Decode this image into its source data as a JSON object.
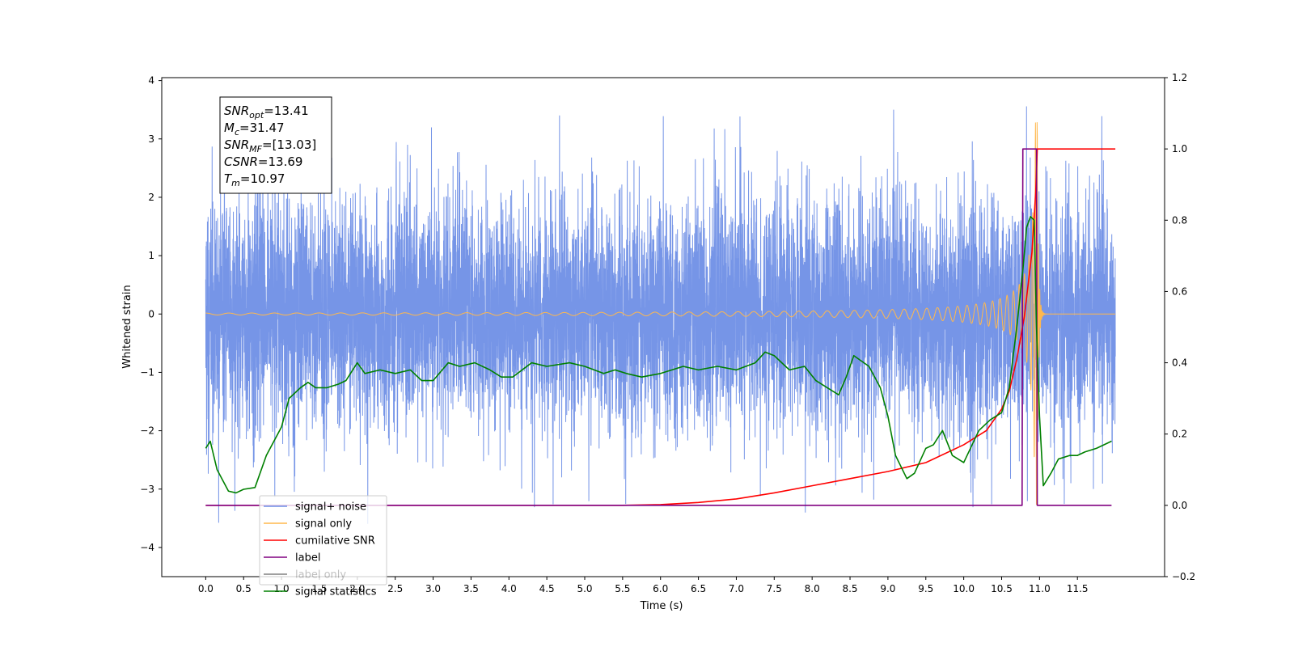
{
  "chart_data": {
    "type": "line",
    "xlabel": "Time (s)",
    "ylabel": "Whitened strain",
    "xlim": [
      -0.58,
      12.65
    ],
    "ylim": [
      -4.5,
      4.05
    ],
    "y2lim": [
      -0.2,
      1.2
    ],
    "x_ticks": [
      "0.0",
      "0.5",
      "1.0",
      "1.5",
      "2.0",
      "2.5",
      "3.0",
      "3.5",
      "4.0",
      "4.5",
      "5.0",
      "5.5",
      "6.0",
      "6.5",
      "7.0",
      "7.5",
      "8.0",
      "8.5",
      "9.0",
      "9.5",
      "10.0",
      "10.5",
      "11.0",
      "11.5"
    ],
    "y_ticks": [
      "4",
      "3",
      "2",
      "1",
      "0",
      "−1",
      "−2",
      "−3",
      "−4"
    ],
    "y2_ticks": [
      "1.2",
      "1.0",
      "0.8",
      "0.6",
      "0.4",
      "0.2",
      "0.0",
      "−0.2"
    ],
    "grid": false,
    "legend_position": "lower-left",
    "annotation": {
      "lines": [
        {
          "sym": "SNR",
          "sub": "opt",
          "value": "=13.41"
        },
        {
          "sym": "M",
          "sub": "c",
          "value": "=31.47"
        },
        {
          "sym": "SNR",
          "sub": "MF",
          "value": "=[13.03]"
        },
        {
          "sym": "CSNR",
          "sub": "",
          "value": "=13.69"
        },
        {
          "sym": "T",
          "sub": "m",
          "value": "=10.97"
        }
      ]
    },
    "series": [
      {
        "name": "signal+ noise",
        "color": "#6f8fe6",
        "axis": "left",
        "noise_amplitude": 1.9,
        "x_range": [
          0.0,
          12.0
        ]
      },
      {
        "name": "signal only",
        "color": "#ffb84d",
        "axis": "left",
        "merger_time": 10.97,
        "peak": 3.3,
        "x_range": [
          0.0,
          12.0
        ]
      },
      {
        "name": "cumilative SNR",
        "color": "#ff0000",
        "axis": "right",
        "x": [
          0.0,
          5.5,
          6.0,
          6.5,
          7.0,
          7.5,
          8.0,
          8.5,
          9.0,
          9.5,
          10.0,
          10.3,
          10.5,
          10.6,
          10.7,
          10.8,
          10.9,
          10.95,
          10.97,
          12.0
        ],
        "y": [
          0.0,
          0.0,
          0.002,
          0.008,
          0.018,
          0.035,
          0.055,
          0.075,
          0.095,
          0.12,
          0.17,
          0.21,
          0.27,
          0.32,
          0.41,
          0.53,
          0.71,
          0.88,
          1.0,
          1.0
        ]
      },
      {
        "name": "label",
        "color": "#800080",
        "axis": "right",
        "x": [
          0.0,
          10.77,
          10.78,
          10.96,
          10.97,
          11.95
        ],
        "y": [
          0.0,
          0.0,
          1.0,
          1.0,
          0.0,
          0.0
        ]
      },
      {
        "name": "label only",
        "color": "#808080",
        "axis": "right",
        "x": [],
        "y": []
      },
      {
        "name": "signal statistics",
        "color": "#008000",
        "axis": "right",
        "x": [
          0.0,
          0.06,
          0.15,
          0.3,
          0.4,
          0.5,
          0.65,
          0.8,
          0.95,
          1.0,
          1.1,
          1.25,
          1.35,
          1.45,
          1.6,
          1.75,
          1.85,
          2.0,
          2.1,
          2.3,
          2.5,
          2.7,
          2.85,
          3.0,
          3.2,
          3.35,
          3.55,
          3.75,
          3.9,
          4.05,
          4.3,
          4.5,
          4.8,
          5.0,
          5.25,
          5.4,
          5.55,
          5.75,
          6.0,
          6.3,
          6.5,
          6.75,
          7.0,
          7.25,
          7.38,
          7.5,
          7.7,
          7.9,
          8.05,
          8.2,
          8.35,
          8.45,
          8.55,
          8.75,
          8.9,
          9.0,
          9.1,
          9.25,
          9.35,
          9.5,
          9.6,
          9.72,
          9.85,
          10.0,
          10.2,
          10.35,
          10.5,
          10.6,
          10.7,
          10.78,
          10.83,
          10.88,
          10.93,
          10.96,
          11.0,
          11.05,
          11.15,
          11.25,
          11.4,
          11.5,
          11.6,
          11.75,
          11.9,
          11.95
        ],
        "y": [
          0.16,
          0.18,
          0.1,
          0.04,
          0.035,
          0.045,
          0.05,
          0.14,
          0.2,
          0.22,
          0.3,
          0.33,
          0.345,
          0.33,
          0.33,
          0.34,
          0.35,
          0.4,
          0.37,
          0.38,
          0.37,
          0.38,
          0.35,
          0.35,
          0.4,
          0.39,
          0.4,
          0.38,
          0.36,
          0.36,
          0.4,
          0.39,
          0.4,
          0.39,
          0.37,
          0.38,
          0.37,
          0.36,
          0.37,
          0.39,
          0.38,
          0.39,
          0.38,
          0.4,
          0.43,
          0.42,
          0.38,
          0.39,
          0.35,
          0.33,
          0.31,
          0.36,
          0.42,
          0.39,
          0.33,
          0.25,
          0.14,
          0.075,
          0.09,
          0.16,
          0.17,
          0.21,
          0.14,
          0.12,
          0.21,
          0.24,
          0.26,
          0.33,
          0.5,
          0.66,
          0.78,
          0.81,
          0.8,
          0.5,
          0.25,
          0.055,
          0.09,
          0.13,
          0.14,
          0.14,
          0.15,
          0.16,
          0.175,
          0.18
        ]
      }
    ]
  }
}
